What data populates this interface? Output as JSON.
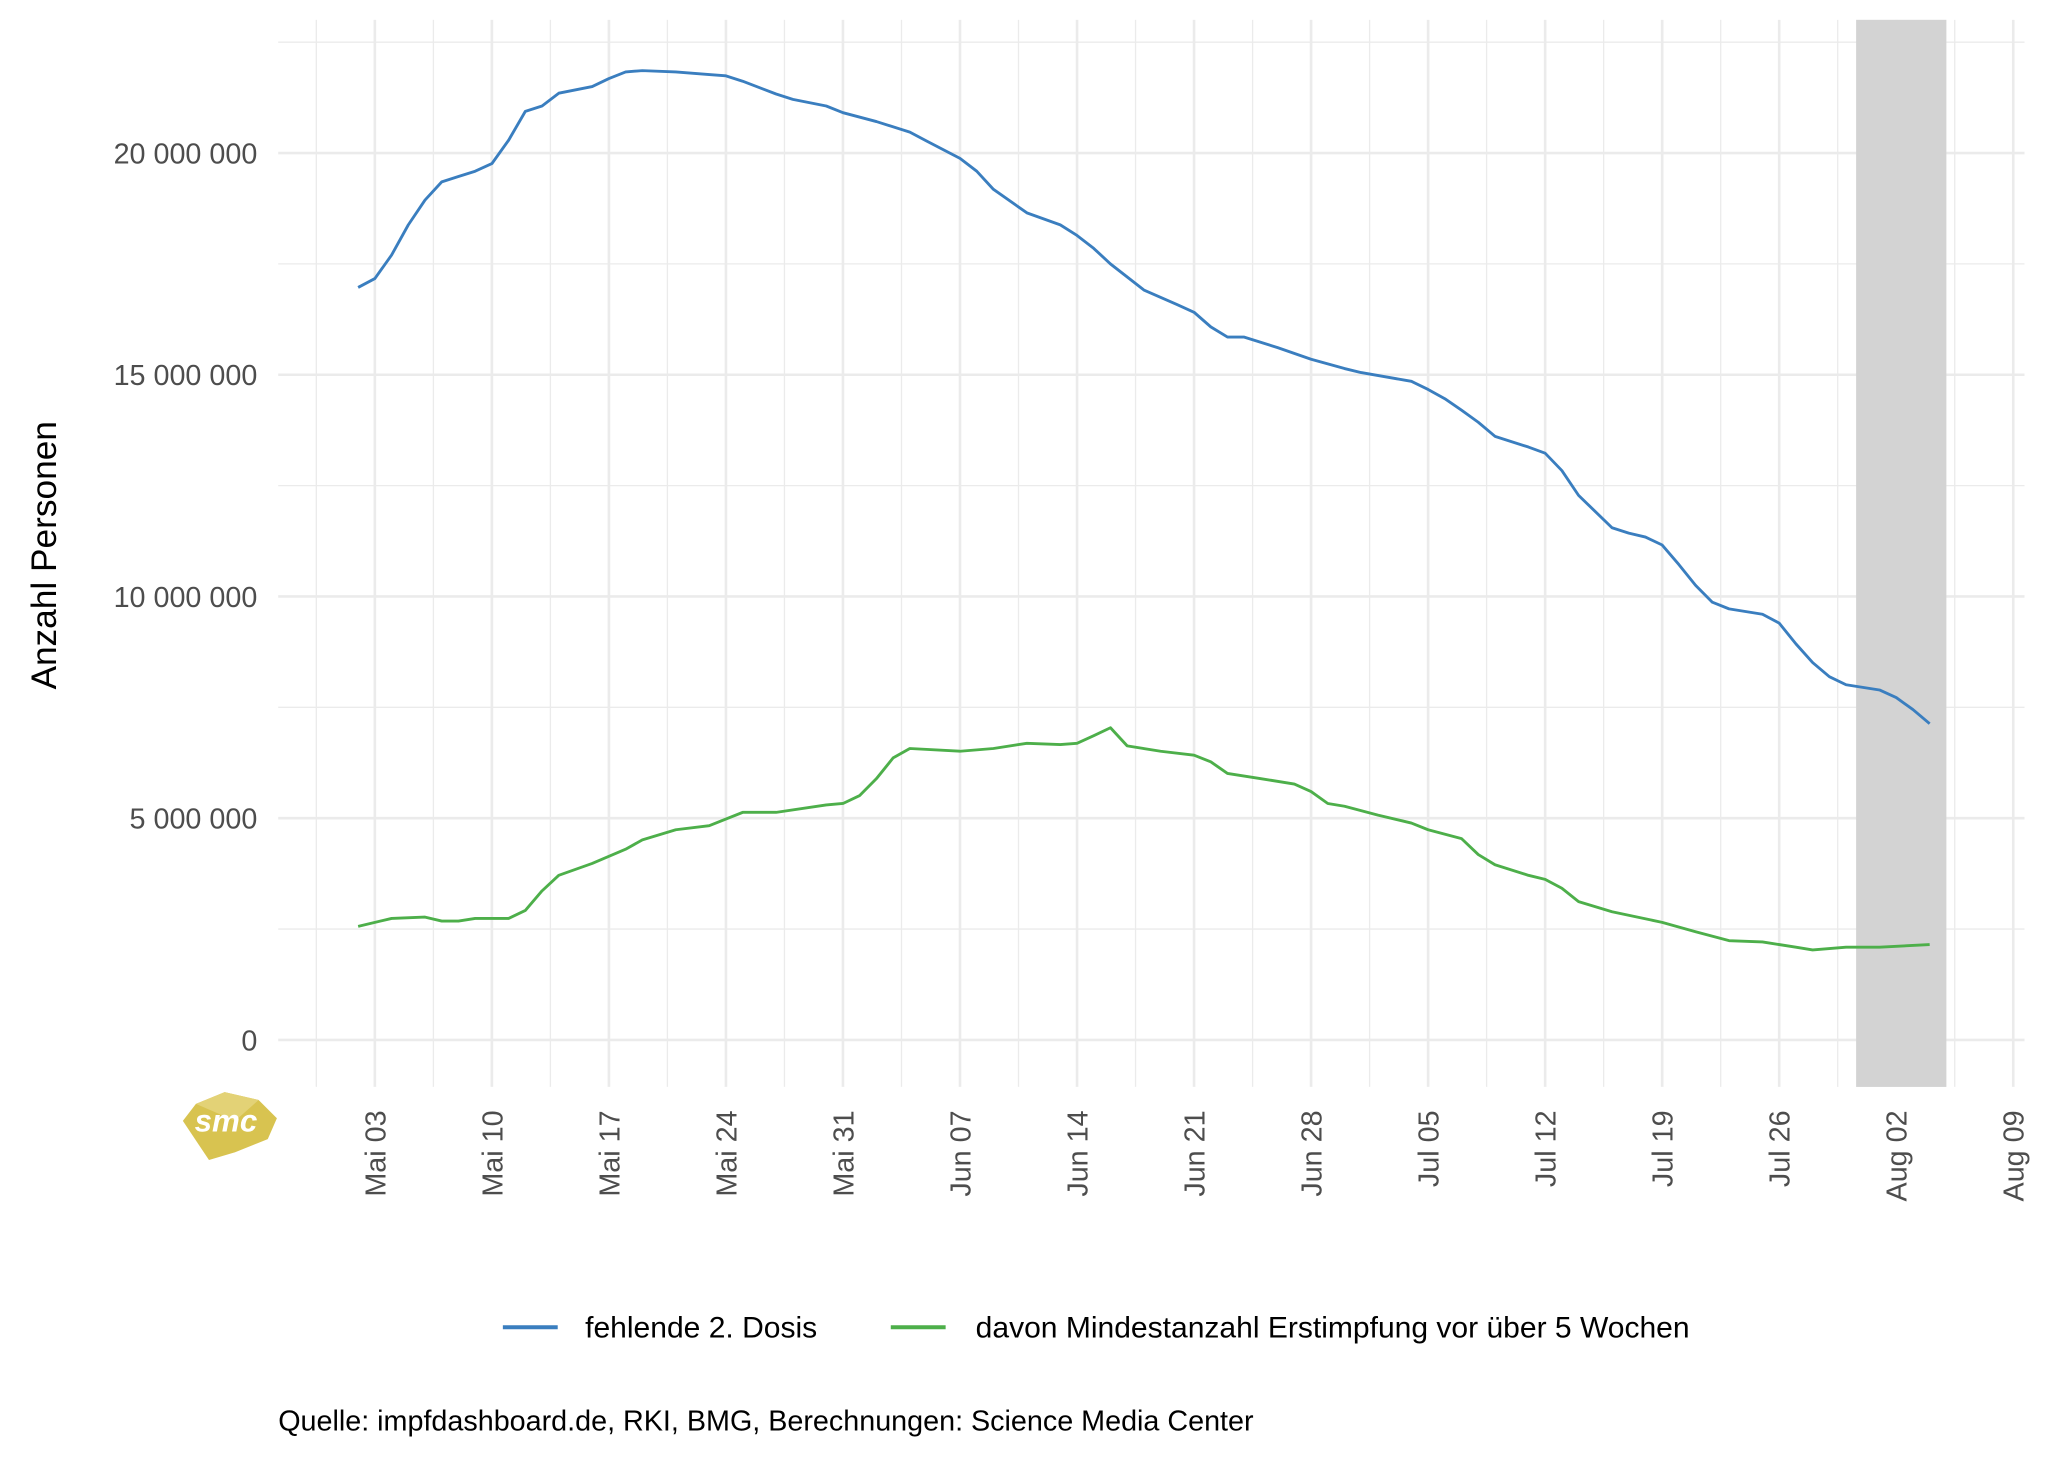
{
  "chart_data": {
    "type": "line",
    "title": "",
    "xlabel": "",
    "ylabel": "Anzahl Personen",
    "ylim": [
      0,
      22000000
    ],
    "grid": true,
    "legend_position": "bottom",
    "y_ticks": [
      {
        "value": 0,
        "label": "0"
      },
      {
        "value": 5000000,
        "label": "5 000 000"
      },
      {
        "value": 10000000,
        "label": "10 000 000"
      },
      {
        "value": 15000000,
        "label": "15 000 000"
      },
      {
        "value": 20000000,
        "label": "20 000 000"
      }
    ],
    "x_ticks": [
      {
        "day": 0,
        "label": "Mai 03"
      },
      {
        "day": 7,
        "label": "Mai 10"
      },
      {
        "day": 14,
        "label": "Mai 17"
      },
      {
        "day": 21,
        "label": "Mai 24"
      },
      {
        "day": 28,
        "label": "Mai 31"
      },
      {
        "day": 35,
        "label": "Jun 07"
      },
      {
        "day": 42,
        "label": "Jun 14"
      },
      {
        "day": 49,
        "label": "Jun 21"
      },
      {
        "day": 56,
        "label": "Jun 28"
      },
      {
        "day": 63,
        "label": "Jul 05"
      },
      {
        "day": 70,
        "label": "Jul 12"
      },
      {
        "day": 77,
        "label": "Jul 19"
      },
      {
        "day": 84,
        "label": "Jul 26"
      },
      {
        "day": 91,
        "label": "Aug 02"
      },
      {
        "day": 98,
        "label": "Aug 09"
      }
    ],
    "x_unit": "days since Mai 03",
    "highlight_range_days": [
      88.6,
      94
    ],
    "series": [
      {
        "name": "fehlende 2. Dosis",
        "color": "#3a7ebf",
        "x": [
          -1,
          0,
          1,
          2,
          3,
          4,
          5,
          6,
          7,
          8,
          9,
          10,
          11,
          13,
          14,
          15,
          16,
          18,
          20,
          21,
          22,
          24,
          25,
          27,
          28,
          30,
          32,
          33,
          35,
          36,
          37,
          39,
          41,
          42,
          43,
          44,
          46,
          48,
          49,
          50,
          51,
          52,
          54,
          56,
          58,
          59,
          62,
          63,
          64,
          65,
          66,
          67,
          69,
          70,
          71,
          72,
          74,
          75,
          76,
          77,
          78,
          79,
          80,
          81,
          83,
          84,
          85,
          86,
          87,
          88,
          90,
          91,
          92,
          93
        ],
        "y": [
          16970000,
          17170000,
          17700000,
          18380000,
          18940000,
          19350000,
          19470000,
          19590000,
          19760000,
          20290000,
          20940000,
          21060000,
          21350000,
          21500000,
          21680000,
          21830000,
          21860000,
          21830000,
          21770000,
          21740000,
          21620000,
          21330000,
          21210000,
          21060000,
          20910000,
          20710000,
          20470000,
          20270000,
          19880000,
          19590000,
          19180000,
          18650000,
          18380000,
          18140000,
          17850000,
          17500000,
          16910000,
          16580000,
          16410000,
          16080000,
          15850000,
          15850000,
          15610000,
          15350000,
          15140000,
          15050000,
          14850000,
          14670000,
          14460000,
          14200000,
          13930000,
          13610000,
          13370000,
          13230000,
          12840000,
          12280000,
          11550000,
          11430000,
          11340000,
          11160000,
          10720000,
          10250000,
          9870000,
          9720000,
          9600000,
          9400000,
          8930000,
          8510000,
          8190000,
          8010000,
          7890000,
          7720000,
          7450000,
          7130000
        ]
      },
      {
        "name": "davon Mindestanzahl Erstimpfung vor über 5 Wochen",
        "color": "#4daf4a",
        "x": [
          -1,
          1,
          3,
          4,
          5,
          6,
          8,
          9,
          10,
          11,
          13,
          15,
          16,
          18,
          20,
          22,
          24,
          27,
          28,
          29,
          30,
          31,
          32,
          35,
          37,
          39,
          41,
          42,
          43,
          44,
          45,
          47,
          49,
          50,
          51,
          53,
          55,
          56,
          57,
          58,
          60,
          62,
          63,
          65,
          66,
          67,
          69,
          70,
          71,
          72,
          74,
          77,
          79,
          81,
          83,
          85,
          86,
          88,
          90,
          93
        ],
        "y": [
          2560000,
          2740000,
          2770000,
          2680000,
          2680000,
          2740000,
          2740000,
          2920000,
          3360000,
          3710000,
          3980000,
          4300000,
          4510000,
          4740000,
          4830000,
          5130000,
          5130000,
          5300000,
          5330000,
          5510000,
          5890000,
          6360000,
          6570000,
          6510000,
          6570000,
          6690000,
          6660000,
          6690000,
          6860000,
          7040000,
          6630000,
          6510000,
          6420000,
          6270000,
          6010000,
          5890000,
          5770000,
          5600000,
          5330000,
          5270000,
          5070000,
          4890000,
          4740000,
          4540000,
          4180000,
          3950000,
          3710000,
          3620000,
          3420000,
          3120000,
          2890000,
          2650000,
          2440000,
          2240000,
          2210000,
          2090000,
          2030000,
          2090000,
          2090000,
          2150000
        ]
      }
    ],
    "caption": "Quelle: impfdashboard.de, RKI, BMG, Berechnungen: Science Media Center",
    "logo_text": "smc"
  }
}
